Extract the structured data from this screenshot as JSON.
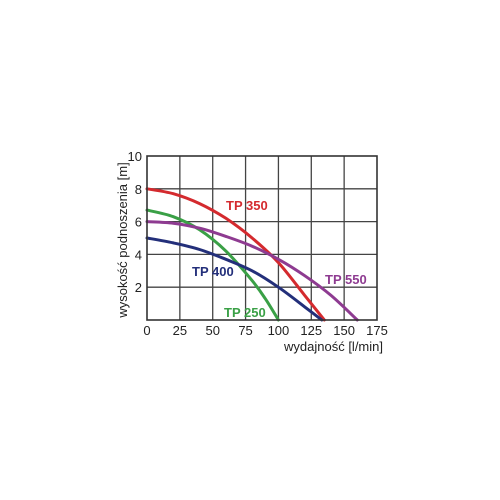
{
  "chart_data": {
    "type": "line",
    "xlabel": "wydajność  [l/min]",
    "ylabel": "wysokość podnoszenia [m]",
    "xlim": [
      0,
      175
    ],
    "ylim": [
      0,
      10
    ],
    "x_ticks": [
      "0",
      "25",
      "50",
      "75",
      "100",
      "125",
      "150",
      "175"
    ],
    "y_ticks": [
      "2",
      "4",
      "6",
      "8",
      "10"
    ],
    "grid": true,
    "series": [
      {
        "name": "TP 350",
        "color": "#d42a2e",
        "x": [
          0,
          20,
          40,
          60,
          80,
          100,
          120,
          135
        ],
        "y": [
          8.0,
          7.7,
          7.1,
          6.2,
          5.0,
          3.5,
          1.5,
          0
        ]
      },
      {
        "name": "TP 250",
        "color": "#3aa046",
        "x": [
          0,
          20,
          40,
          60,
          80,
          90,
          100
        ],
        "y": [
          6.7,
          6.3,
          5.5,
          4.2,
          2.4,
          1.3,
          0
        ]
      },
      {
        "name": "TP 400",
        "color": "#232f7a",
        "x": [
          0,
          20,
          40,
          60,
          80,
          100,
          120,
          133
        ],
        "y": [
          5.0,
          4.7,
          4.3,
          3.7,
          3.0,
          2.0,
          0.8,
          0
        ]
      },
      {
        "name": "TP 550",
        "color": "#8e3b91",
        "x": [
          0,
          20,
          40,
          60,
          80,
          100,
          120,
          140,
          160
        ],
        "y": [
          6.0,
          5.9,
          5.6,
          5.1,
          4.5,
          3.7,
          2.7,
          1.5,
          0
        ]
      }
    ]
  }
}
